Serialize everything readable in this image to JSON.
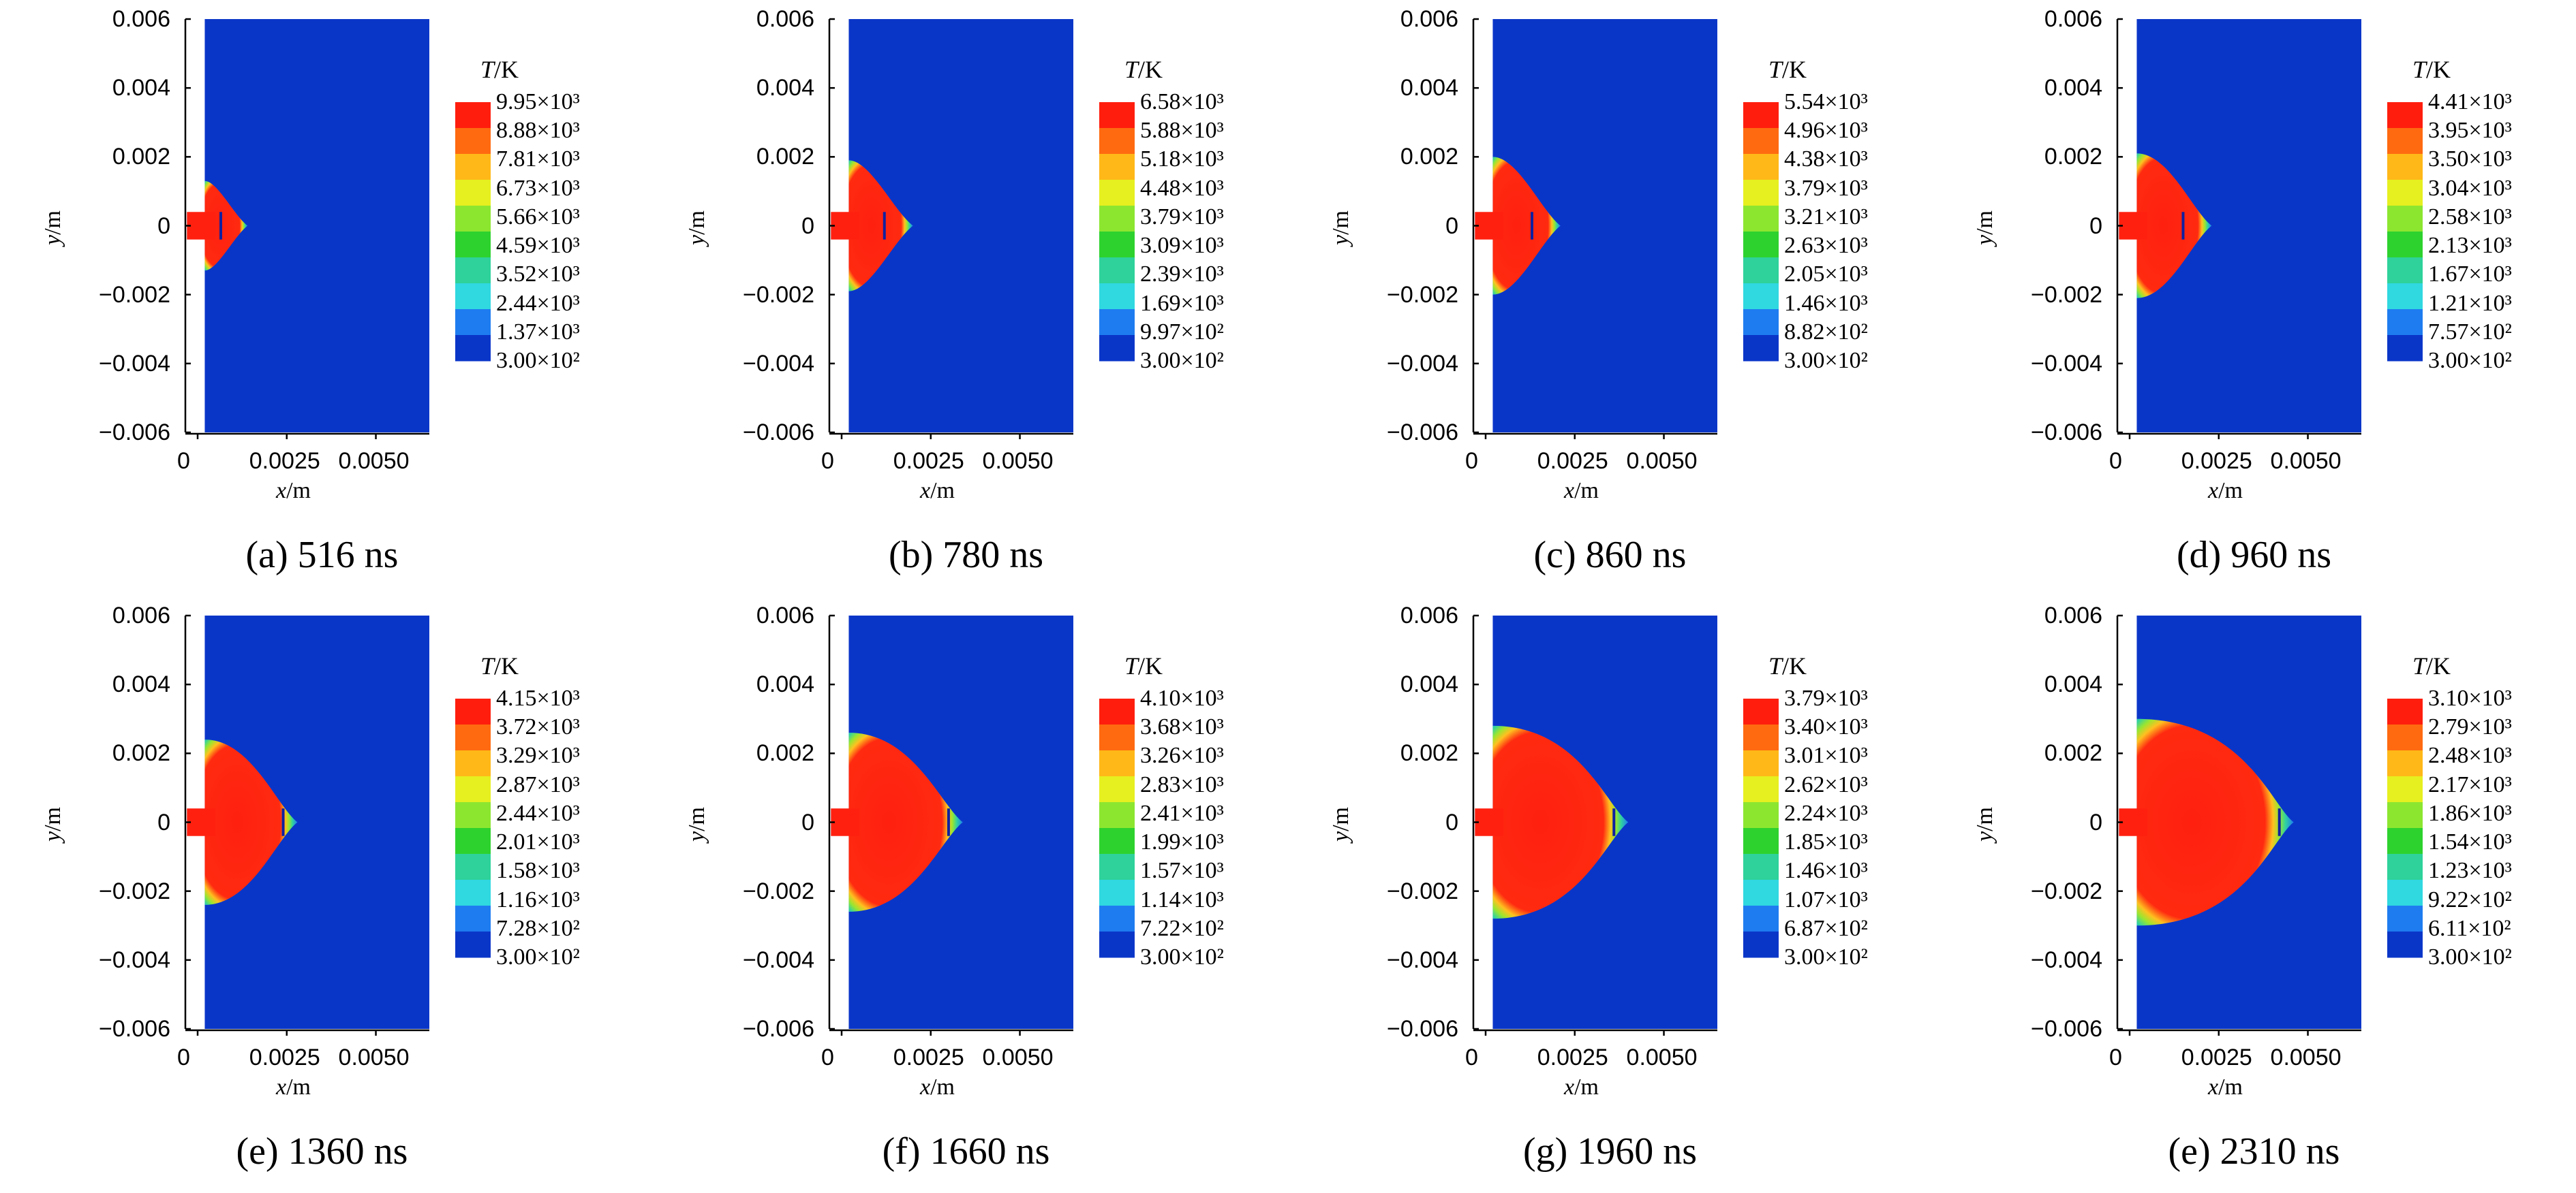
{
  "colors": {
    "background_field": "#0a36c8",
    "hot_core": "#ff2010"
  },
  "colorbar_title": {
    "var": "T",
    "unit": "/K"
  },
  "axis_labels": {
    "x_var": "x",
    "x_unit": "/m",
    "y_var": "y",
    "y_unit": "/m"
  },
  "y_ticks": [
    "0.006",
    "0.004",
    "0.002",
    "0",
    "−0.002",
    "−0.004",
    "−0.006"
  ],
  "x_ticks": [
    "0",
    "0.0025",
    "0.0050"
  ],
  "chart_data": [
    {
      "type": "heatmap",
      "caption": "(a) 516 ns",
      "xlim": [
        0,
        0.0065
      ],
      "ylim": [
        -0.006,
        0.006
      ],
      "colorbar": [
        "9.95×10³",
        "8.88×10³",
        "7.81×10³",
        "6.73×10³",
        "5.66×10³",
        "4.59×10³",
        "3.52×10³",
        "2.44×10³",
        "1.37×10³",
        "3.00×10²"
      ],
      "hot_zone": {
        "front_x": 0.0014,
        "half_height": 0.0013,
        "neck_x": 0.00055,
        "marker_x": 0.00065
      }
    },
    {
      "type": "heatmap",
      "caption": "(b) 780 ns",
      "xlim": [
        0,
        0.0065
      ],
      "ylim": [
        -0.006,
        0.006
      ],
      "colorbar": [
        "6.58×10³",
        "5.88×10³",
        "5.18×10³",
        "4.48×10³",
        "3.79×10³",
        "3.09×10³",
        "2.39×10³",
        "1.69×10³",
        "9.97×10²",
        "3.00×10²"
      ],
      "hot_zone": {
        "front_x": 0.002,
        "half_height": 0.0019,
        "neck_x": 0.0008,
        "marker_x": 0.0012
      }
    },
    {
      "type": "heatmap",
      "caption": "(c) 860 ns",
      "xlim": [
        0,
        0.0065
      ],
      "ylim": [
        -0.006,
        0.006
      ],
      "colorbar": [
        "5.54×10³",
        "4.96×10³",
        "4.38×10³",
        "3.79×10³",
        "3.21×10³",
        "2.63×10³",
        "2.05×10³",
        "1.46×10³",
        "8.82×10²",
        "3.00×10²"
      ],
      "hot_zone": {
        "front_x": 0.0021,
        "half_height": 0.002,
        "neck_x": 0.0009,
        "marker_x": 0.0013
      }
    },
    {
      "type": "heatmap",
      "caption": "(d) 960 ns",
      "xlim": [
        0,
        0.0065
      ],
      "ylim": [
        -0.006,
        0.006
      ],
      "colorbar": [
        "4.41×10³",
        "3.95×10³",
        "3.50×10³",
        "3.04×10³",
        "2.58×10³",
        "2.13×10³",
        "1.67×10³",
        "1.21×10³",
        "7.57×10²",
        "3.00×10²"
      ],
      "hot_zone": {
        "front_x": 0.0023,
        "half_height": 0.0021,
        "neck_x": 0.0011,
        "marker_x": 0.0015
      }
    },
    {
      "type": "heatmap",
      "caption": "(e) 1360 ns",
      "xlim": [
        0,
        0.0065
      ],
      "ylim": [
        -0.006,
        0.006
      ],
      "colorbar": [
        "4.15×10³",
        "3.72×10³",
        "3.29×10³",
        "2.87×10³",
        "2.44×10³",
        "2.01×10³",
        "1.58×10³",
        "1.16×10³",
        "7.28×10²",
        "3.00×10²"
      ],
      "hot_zone": {
        "front_x": 0.0028,
        "half_height": 0.0024,
        "neck_x": 0.0015,
        "marker_x": 0.0024
      }
    },
    {
      "type": "heatmap",
      "caption": "(f) 1660 ns",
      "xlim": [
        0,
        0.0065
      ],
      "ylim": [
        -0.006,
        0.006
      ],
      "colorbar": [
        "4.10×10³",
        "3.68×10³",
        "3.26×10³",
        "2.83×10³",
        "2.41×10³",
        "1.99×10³",
        "1.57×10³",
        "1.14×10³",
        "7.22×10²",
        "3.00×10²"
      ],
      "hot_zone": {
        "front_x": 0.0034,
        "half_height": 0.0026,
        "neck_x": 0.002,
        "marker_x": 0.003
      }
    },
    {
      "type": "heatmap",
      "caption": "(g) 1960 ns",
      "xlim": [
        0,
        0.0065
      ],
      "ylim": [
        -0.006,
        0.006
      ],
      "colorbar": [
        "3.79×10³",
        "3.40×10³",
        "3.01×10³",
        "2.62×10³",
        "2.24×10³",
        "1.85×10³",
        "1.46×10³",
        "1.07×10³",
        "6.87×10²",
        "3.00×10²"
      ],
      "hot_zone": {
        "front_x": 0.004,
        "half_height": 0.0028,
        "neck_x": 0.0026,
        "marker_x": 0.0036
      }
    },
    {
      "type": "heatmap",
      "caption": "(e) 2310 ns",
      "xlim": [
        0,
        0.0065
      ],
      "ylim": [
        -0.006,
        0.006
      ],
      "colorbar": [
        "3.10×10³",
        "2.79×10³",
        "2.48×10³",
        "2.17×10³",
        "1.86×10³",
        "1.54×10³",
        "1.23×10³",
        "9.22×10²",
        "6.11×10²",
        "3.00×10²"
      ],
      "hot_zone": {
        "front_x": 0.0046,
        "half_height": 0.003,
        "neck_x": 0.0032,
        "marker_x": 0.0042
      }
    }
  ]
}
